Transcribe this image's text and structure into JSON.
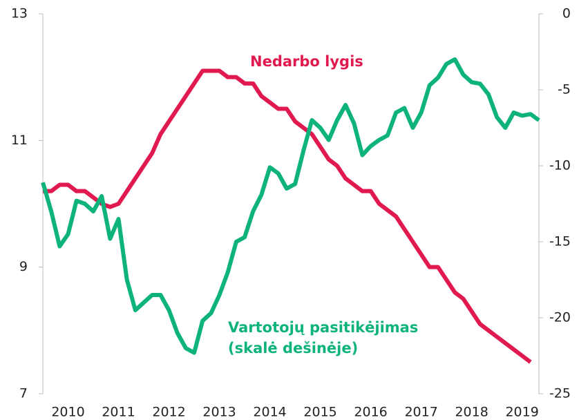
{
  "chart_data": {
    "type": "line",
    "categories": [
      null,
      null,
      null,
      "2010",
      null,
      null,
      null,
      null,
      null,
      "2011",
      null,
      null,
      null,
      null,
      null,
      "2012",
      null,
      null,
      null,
      null,
      null,
      "2013",
      null,
      null,
      null,
      null,
      null,
      "2014",
      null,
      null,
      null,
      null,
      null,
      "2015",
      null,
      null,
      null,
      null,
      null,
      "2016",
      null,
      null,
      null,
      null,
      null,
      "2017",
      null,
      null,
      null,
      null,
      null,
      "2018",
      null,
      null,
      null,
      null,
      null,
      "2019",
      null,
      null
    ],
    "series": [
      {
        "name": "Nedarbo lygis",
        "color": "#e0194f",
        "axis": "y",
        "values": [
          10.2,
          10.2,
          10.3,
          10.3,
          10.2,
          10.2,
          10.1,
          10.0,
          9.95,
          10.0,
          10.2,
          10.4,
          10.6,
          10.8,
          11.1,
          11.3,
          11.5,
          11.7,
          11.9,
          12.1,
          12.1,
          12.1,
          12.0,
          12.0,
          11.9,
          11.9,
          11.7,
          11.6,
          11.5,
          11.5,
          11.3,
          11.2,
          11.1,
          10.9,
          10.7,
          10.6,
          10.4,
          10.3,
          10.2,
          10.2,
          10.0,
          9.9,
          9.8,
          9.6,
          9.4,
          9.2,
          9.0,
          9.0,
          8.8,
          8.6,
          8.5,
          8.3,
          8.1,
          8.0,
          7.9,
          7.8,
          7.7,
          7.6,
          7.5,
          null
        ]
      },
      {
        "name": "Vartotojų pasitikėjimas (skalė dešinėje)",
        "color": "#0db37a",
        "axis": "y2",
        "values": [
          -11.1,
          -13.0,
          -15.3,
          -14.5,
          -12.3,
          -12.5,
          -13.0,
          -12.0,
          -14.8,
          -13.5,
          -17.5,
          -19.5,
          -19.0,
          -18.5,
          -18.5,
          -19.5,
          -21.0,
          -22.0,
          -22.3,
          -20.2,
          -19.7,
          -18.5,
          -17.0,
          -15.0,
          -14.7,
          -13.0,
          -11.9,
          -10.1,
          -10.5,
          -11.5,
          -11.2,
          -9.0,
          -7.0,
          -7.5,
          -8.3,
          -7.0,
          -6.0,
          -7.2,
          -9.3,
          -8.7,
          -8.3,
          -8.0,
          -6.5,
          -6.2,
          -7.5,
          -6.5,
          -4.7,
          -4.2,
          -3.3,
          -3.0,
          -4.0,
          -4.5,
          -4.6,
          -5.3,
          -6.8,
          -7.5,
          -6.5,
          -6.7,
          -6.6,
          -7.0
        ]
      }
    ],
    "annotations": [
      "Nedarbo lygis",
      "Vartotojų pasitikėjimas",
      "(skalė dešinėje)"
    ],
    "ylim": [
      7,
      13
    ],
    "yticks": [
      7,
      9,
      11,
      13
    ],
    "y2lim": [
      -25,
      0
    ],
    "y2ticks": [
      -25,
      -20,
      -15,
      -10,
      -5,
      0
    ]
  }
}
